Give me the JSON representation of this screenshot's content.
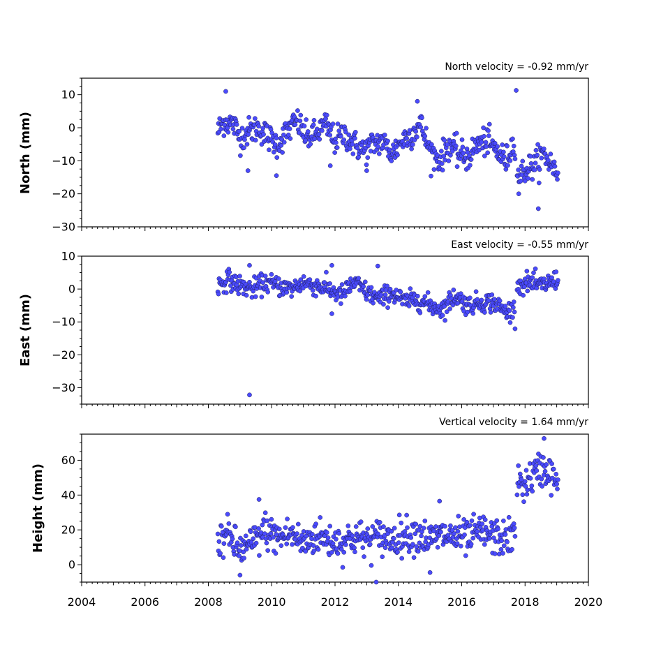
{
  "chart_data": [
    {
      "type": "scatter",
      "annotation": "North velocity = -0.92 mm/yr",
      "ylabel": "North (mm)",
      "xlim": [
        2004,
        2020
      ],
      "ylim": [
        -30,
        15
      ],
      "y_ticks": [
        10,
        0,
        -10,
        -20,
        -30
      ],
      "series": [
        {
          "color": "#4a4afc",
          "segments": [
            {
              "x": [
                2008.3,
                2008.5,
                2008.8,
                2009.0,
                2009.3,
                2009.6,
                2009.9,
                2010.2,
                2010.5,
                2010.8,
                2011.1,
                2011.4,
                2011.7,
                2012.0,
                2012.3,
                2012.6,
                2012.9,
                2013.2,
                2013.5,
                2013.8,
                2014.1,
                2014.4,
                2014.7,
                2015.0,
                2015.3,
                2015.6,
                2015.9,
                2016.2,
                2016.5,
                2016.8,
                2017.1,
                2017.4,
                2017.7
              ],
              "y": [
                -1,
                2,
                1,
                -3,
                -1,
                0,
                -3,
                -5,
                -1,
                2,
                -3,
                -2,
                1,
                -4,
                -2,
                -5,
                -7,
                -5,
                -4,
                -8,
                -4,
                -2,
                1,
                -7,
                -10,
                -5,
                -8,
                -9,
                -5,
                -4,
                -7,
                -10,
                -3
              ]
            },
            {
              "x": [
                2017.75,
                2018.0,
                2018.3,
                2018.6,
                2018.9,
                2019.05
              ],
              "y": [
                -15,
                -13,
                -11,
                -8,
                -12,
                -14
              ]
            }
          ],
          "noise_sd": 2.1,
          "outliers": [
            {
              "x": 2008.55,
              "y": 11
            },
            {
              "x": 2009.25,
              "y": -13
            },
            {
              "x": 2010.15,
              "y": -14.5
            },
            {
              "x": 2011.85,
              "y": -11.5
            },
            {
              "x": 2013.0,
              "y": -13
            },
            {
              "x": 2014.6,
              "y": 8
            },
            {
              "x": 2017.72,
              "y": 11.3
            },
            {
              "x": 2018.42,
              "y": -24.5
            },
            {
              "x": 2017.8,
              "y": -20
            }
          ]
        }
      ]
    },
    {
      "type": "scatter",
      "annotation": "East velocity = -0.55 mm/yr",
      "ylabel": "East (mm)",
      "xlim": [
        2004,
        2020
      ],
      "ylim": [
        -35,
        10
      ],
      "y_ticks": [
        10,
        0,
        -10,
        -20,
        -30
      ],
      "series": [
        {
          "color": "#4a4afc",
          "segments": [
            {
              "x": [
                2008.3,
                2008.6,
                2009.0,
                2009.4,
                2009.8,
                2010.2,
                2010.6,
                2011.0,
                2011.4,
                2011.8,
                2012.2,
                2012.6,
                2013.0,
                2013.4,
                2013.8,
                2014.2,
                2014.6,
                2015.0,
                2015.4,
                2015.8,
                2016.2,
                2016.6,
                2017.0,
                2017.4,
                2017.7
              ],
              "y": [
                1,
                3,
                1,
                0,
                2,
                1,
                0,
                2,
                1,
                0,
                -2,
                2,
                -1,
                -3,
                -1,
                -4,
                -3,
                -5,
                -6,
                -2,
                -5,
                -4,
                -4,
                -7,
                -6
              ]
            },
            {
              "x": [
                2017.75,
                2018.1,
                2018.5,
                2018.8,
                2019.05
              ],
              "y": [
                1,
                2,
                1,
                2,
                3
              ]
            }
          ],
          "noise_sd": 1.5,
          "outliers": [
            {
              "x": 2009.3,
              "y": -32.2
            },
            {
              "x": 2009.3,
              "y": 7.2
            },
            {
              "x": 2011.9,
              "y": 7.2
            },
            {
              "x": 2013.35,
              "y": 7
            },
            {
              "x": 2011.9,
              "y": -7.5
            }
          ]
        }
      ]
    },
    {
      "type": "scatter",
      "annotation": "Vertical velocity = 1.64 mm/yr",
      "ylabel": "Height (mm)",
      "xlim": [
        2004,
        2020
      ],
      "ylim": [
        -10,
        75
      ],
      "y_ticks": [
        60,
        40,
        20,
        0
      ],
      "x_ticks": [
        2004,
        2006,
        2008,
        2010,
        2012,
        2014,
        2016,
        2018,
        2020
      ],
      "series": [
        {
          "color": "#4a4afc",
          "segments": [
            {
              "x": [
                2008.3,
                2008.6,
                2009.0,
                2009.4,
                2009.8,
                2010.2,
                2010.6,
                2011.0,
                2011.4,
                2011.8,
                2012.2,
                2012.6,
                2013.0,
                2013.4,
                2013.8,
                2014.2,
                2014.6,
                2015.0,
                2015.4,
                2015.8,
                2016.2,
                2016.6,
                2017.0,
                2017.4,
                2017.7
              ],
              "y": [
                14,
                17,
                8,
                12,
                20,
                15,
                18,
                12,
                17,
                14,
                13,
                16,
                14,
                16,
                15,
                17,
                18,
                14,
                17,
                16,
                15,
                19,
                16,
                15,
                17
              ]
            },
            {
              "x": [
                2017.75,
                2018.0,
                2018.3,
                2018.6,
                2018.9,
                2019.05
              ],
              "y": [
                48,
                46,
                52,
                56,
                50,
                44
              ]
            }
          ],
          "noise_sd": 5.2,
          "outliers": [
            {
              "x": 2009.6,
              "y": 37.5
            },
            {
              "x": 2009.0,
              "y": -6
            },
            {
              "x": 2013.3,
              "y": -10
            },
            {
              "x": 2018.6,
              "y": 72.5
            },
            {
              "x": 2015.3,
              "y": 36.5
            },
            {
              "x": 2015.0,
              "y": -4.5
            }
          ]
        }
      ]
    }
  ]
}
